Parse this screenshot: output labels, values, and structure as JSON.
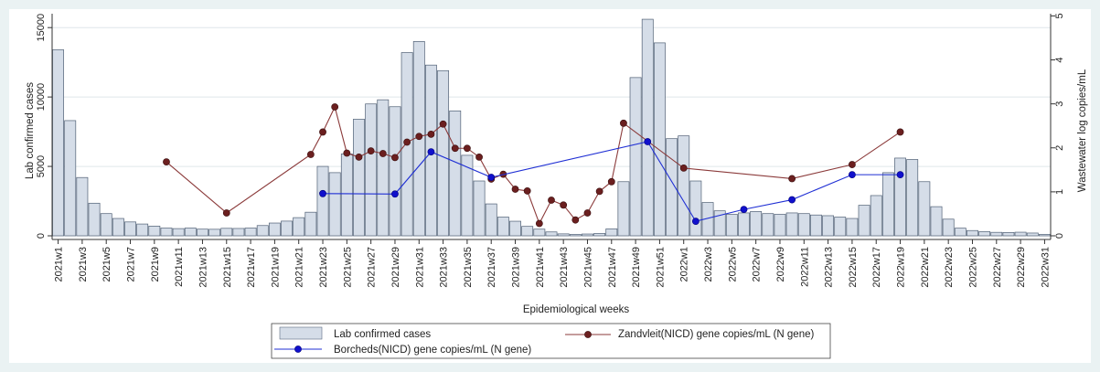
{
  "chart_data": {
    "type": "bar+line",
    "xlabel": "Epidemiological weeks",
    "ylabel_left": "Lab confirmed cases",
    "ylabel_right": "Wastewater log copies/mL",
    "ylim_left": [
      0,
      16000
    ],
    "ylim_right": [
      0,
      5.05
    ],
    "yticks_left": [
      0,
      5000,
      10000,
      15000
    ],
    "yticks_right": [
      0,
      1,
      2,
      3,
      4,
      5
    ],
    "grid": "horizontal",
    "legend_position": "bottom",
    "weeks": [
      "2021w1",
      "2021w2",
      "2021w3",
      "2021w4",
      "2021w5",
      "2021w6",
      "2021w7",
      "2021w8",
      "2021w9",
      "2021w10",
      "2021w11",
      "2021w12",
      "2021w13",
      "2021w14",
      "2021w15",
      "2021w16",
      "2021w17",
      "2021w18",
      "2021w19",
      "2021w20",
      "2021w21",
      "2021w22",
      "2021w23",
      "2021w24",
      "2021w25",
      "2021w26",
      "2021w27",
      "2021w28",
      "2021w29",
      "2021w30",
      "2021w31",
      "2021w32",
      "2021w33",
      "2021w34",
      "2021w35",
      "2021w36",
      "2021w37",
      "2021w38",
      "2021w39",
      "2021w40",
      "2021w41",
      "2021w42",
      "2021w43",
      "2021w44",
      "2021w45",
      "2021w46",
      "2021w47",
      "2021w48",
      "2021w49",
      "2021w50",
      "2021w51",
      "2021w52",
      "2022w1",
      "2022w2",
      "2022w3",
      "2022w4",
      "2022w5",
      "2022w6",
      "2022w7",
      "2022w8",
      "2022w9",
      "2022w10",
      "2022w11",
      "2022w12",
      "2022w13",
      "2022w14",
      "2022w15",
      "2022w16",
      "2022w17",
      "2022w18",
      "2022w19",
      "2022w20",
      "2022w21",
      "2022w22",
      "2022w23",
      "2022w24",
      "2022w25",
      "2022w26",
      "2022w27",
      "2022w28",
      "2022w29",
      "2022w30",
      "2022w31"
    ],
    "tick_labels": [
      "2021w1",
      "2021w3",
      "2021w5",
      "2021w7",
      "2021w9",
      "2021w11",
      "2021w13",
      "2021w15",
      "2021w17",
      "2021w19",
      "2021w21",
      "2021w23",
      "2021w25",
      "2021w27",
      "2021w29",
      "2021w31",
      "2021w33",
      "2021w35",
      "2021w37",
      "2021w39",
      "2021w41",
      "2021w43",
      "2021w45",
      "2021w47",
      "2021w49",
      "2021w51",
      "2022w1",
      "2022w3",
      "2022w5",
      "2022w7",
      "2022w9",
      "2022w11",
      "2022w13",
      "2022w15",
      "2022w17",
      "2022w19",
      "2022w21",
      "2022w23",
      "2022w25",
      "2022w27",
      "2022w29",
      "2022w31"
    ],
    "series": [
      {
        "name": "Lab confirmed cases",
        "kind": "bar",
        "axis": "left",
        "color": "#d5dde8",
        "values": [
          13400,
          8300,
          4200,
          2350,
          1600,
          1250,
          1000,
          850,
          700,
          560,
          520,
          560,
          480,
          470,
          540,
          530,
          560,
          740,
          920,
          1060,
          1310,
          1700,
          5000,
          4550,
          5900,
          8400,
          9500,
          9800,
          9300,
          13200,
          14000,
          12300,
          11900,
          9000,
          5800,
          3950,
          2300,
          1350,
          1050,
          680,
          480,
          280,
          140,
          100,
          130,
          170,
          500,
          3900,
          11400,
          15600,
          13900,
          7000,
          7200,
          3950,
          2400,
          1800,
          1550,
          1650,
          1750,
          1600,
          1550,
          1650,
          1600,
          1500,
          1450,
          1350,
          1250,
          2200,
          2900,
          4550,
          5600,
          5500,
          3900,
          2100,
          1200,
          550,
          380,
          300,
          250,
          240,
          260,
          200,
          100
        ]
      },
      {
        "name": "Zandvleit(NICD) gene copies/mL (N gene)",
        "kind": "line",
        "axis": "right",
        "color": "#8b3a3a",
        "points": [
          [
            "2021w10",
            1.68
          ],
          [
            "2021w15",
            0.52
          ],
          [
            "2021w22",
            1.85
          ],
          [
            "2021w23",
            2.36
          ],
          [
            "2021w24",
            2.93
          ],
          [
            "2021w25",
            1.88
          ],
          [
            "2021w26",
            1.79
          ],
          [
            "2021w27",
            1.93
          ],
          [
            "2021w28",
            1.87
          ],
          [
            "2021w29",
            1.78
          ],
          [
            "2021w30",
            2.13
          ],
          [
            "2021w31",
            2.26
          ],
          [
            "2021w32",
            2.31
          ],
          [
            "2021w33",
            2.54
          ],
          [
            "2021w34",
            1.99
          ],
          [
            "2021w35",
            1.99
          ],
          [
            "2021w36",
            1.79
          ],
          [
            "2021w37",
            1.29
          ],
          [
            "2021w38",
            1.4
          ],
          [
            "2021w39",
            1.06
          ],
          [
            "2021w40",
            1.02
          ],
          [
            "2021w41",
            0.28
          ],
          [
            "2021w42",
            0.81
          ],
          [
            "2021w43",
            0.7
          ],
          [
            "2021w44",
            0.36
          ],
          [
            "2021w45",
            0.52
          ],
          [
            "2021w46",
            1.01
          ],
          [
            "2021w47",
            1.23
          ],
          [
            "2021w48",
            2.56
          ],
          [
            "2022w1",
            1.54
          ],
          [
            "2022w10",
            1.3
          ],
          [
            "2022w15",
            1.62
          ],
          [
            "2022w19",
            2.36
          ]
        ]
      },
      {
        "name": "Borcheds(NICD) gene copies/mL (N gene)",
        "kind": "line",
        "axis": "right",
        "color": "#1f2fd4",
        "points": [
          [
            "2021w23",
            0.96
          ],
          [
            "2021w29",
            0.95
          ],
          [
            "2021w32",
            1.91
          ],
          [
            "2021w37",
            1.33
          ],
          [
            "2021w50",
            2.14
          ],
          [
            "2022w2",
            0.33
          ],
          [
            "2022w6",
            0.6
          ],
          [
            "2022w10",
            0.82
          ],
          [
            "2022w15",
            1.39
          ],
          [
            "2022w19",
            1.39
          ]
        ]
      }
    ]
  },
  "legend": {
    "items": [
      {
        "label": "Lab confirmed cases"
      },
      {
        "label": "Zandvleit(NICD) gene copies/mL (N gene)"
      },
      {
        "label": "Borcheds(NICD) gene copies/mL (N gene)"
      }
    ]
  }
}
